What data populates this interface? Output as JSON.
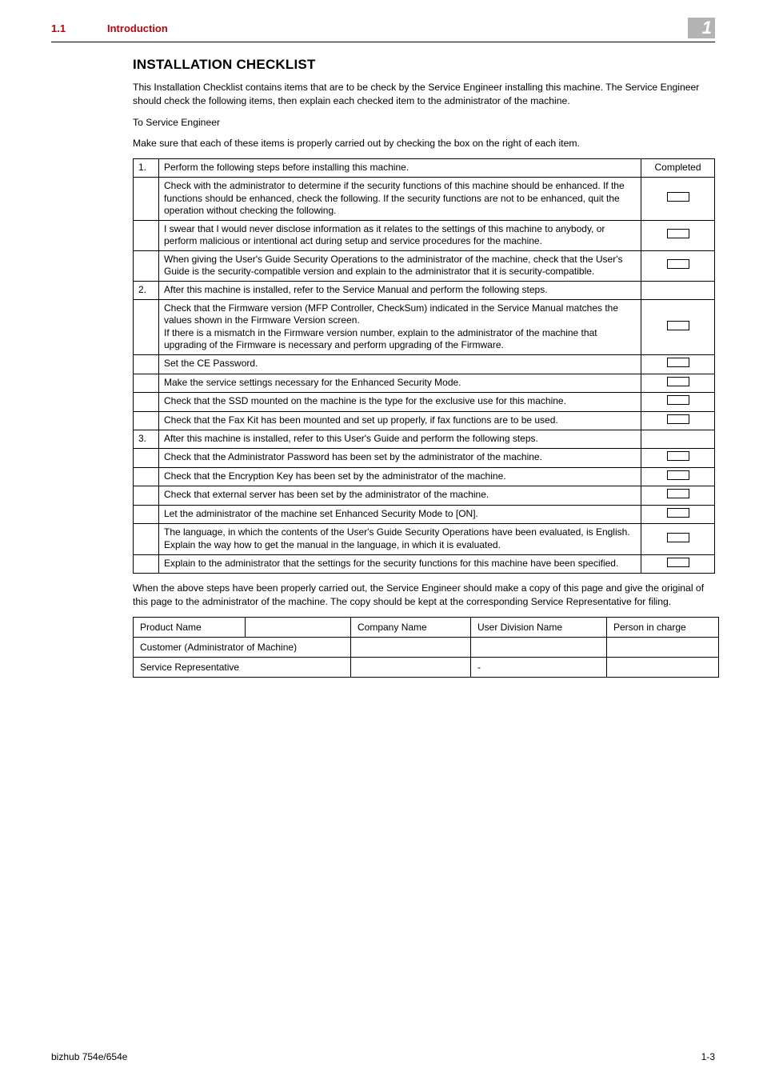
{
  "header": {
    "section_number": "1.1",
    "section_title": "Introduction",
    "badge": "1"
  },
  "title": "INSTALLATION CHECKLIST",
  "intro_para": "This Installation Checklist contains items that are to be check by the Service Engineer installing this machine. The Service Engineer should check the following items, then explain each checked item to the administrator of the machine.",
  "to_line": "To Service Engineer",
  "make_sure": "Make sure that each of these items is properly carried out by checking the box on the right of each item.",
  "completed_label": "Completed",
  "checklist": [
    {
      "num": "1.",
      "text": "Perform the following steps before installing this machine.",
      "is_header": true
    },
    {
      "num": "",
      "text": "Check with the administrator to determine if the security functions of this machine should be enhanced. If the functions should be enhanced, check the following. If the security functions are not to be enhanced, quit the operation without checking the following.",
      "checkbox": true
    },
    {
      "num": "",
      "text": "I swear that I would never disclose information as it relates to the settings of this machine to anybody, or perform malicious or intentional act during setup and service procedures for the machine.",
      "checkbox": true
    },
    {
      "num": "",
      "text": "When giving the User's Guide Security Operations to the administrator of the machine, check that the User's Guide is the security-compatible version and explain to the administrator that it is security-compatible.",
      "checkbox": true
    },
    {
      "num": "2.",
      "text": "After this machine is installed, refer to the Service Manual and perform the following steps.",
      "is_header": true
    },
    {
      "num": "",
      "text": "Check that the Firmware version (MFP Controller, CheckSum) indicated in the Service Manual matches the values shown in the Firmware Version screen.\nIf there is a mismatch in the Firmware version number, explain to the administrator of the machine that upgrading of the Firmware is necessary and perform upgrading of the Firmware.",
      "checkbox": true
    },
    {
      "num": "",
      "text": "Set the CE Password.",
      "checkbox": true
    },
    {
      "num": "",
      "text": "Make the service settings necessary for the Enhanced Security Mode.",
      "checkbox": true
    },
    {
      "num": "",
      "text": "Check that the SSD mounted on the machine is the type for the exclusive use for this machine.",
      "checkbox": true
    },
    {
      "num": "",
      "text": "Check that the Fax Kit has been mounted and set up properly, if fax functions are to be used.",
      "checkbox": true
    },
    {
      "num": "3.",
      "text": "After this machine is installed, refer to this User's Guide and perform the following steps.",
      "is_header": true
    },
    {
      "num": "",
      "text": "Check that the Administrator Password has been set by the administrator of the machine.",
      "checkbox": true
    },
    {
      "num": "",
      "text": "Check that the Encryption Key has been set by the administrator of the machine.",
      "checkbox": true
    },
    {
      "num": "",
      "text": "Check that external server has been set by the administrator of the machine.",
      "checkbox": true
    },
    {
      "num": "",
      "text": "Let the administrator of the machine set Enhanced Security Mode to [ON].",
      "checkbox": true
    },
    {
      "num": "",
      "text": "The language, in which the contents of the User's Guide Security Operations have been evaluated, is English.\nExplain the way how to get the manual in the language, in which it is evaluated.",
      "checkbox": true
    },
    {
      "num": "",
      "text": "Explain to the administrator that the settings for the security functions for this machine have been specified.",
      "checkbox": true
    }
  ],
  "after_para": "When the above steps have been properly carried out, the Service Engineer should make a copy of this page and give the original of this page to the administrator of the machine. The copy should be kept at the corresponding Service Representative for filing.",
  "sig": {
    "product_name": "Product Name",
    "company_name": "Company Name",
    "user_division": "User Division Name",
    "person_in_charge": "Person in charge",
    "customer": "Customer (Administrator of Machine)",
    "service_rep": "Service Representative",
    "dash": "-"
  },
  "footer": {
    "left": "bizhub 754e/654e",
    "right": "1-3"
  }
}
